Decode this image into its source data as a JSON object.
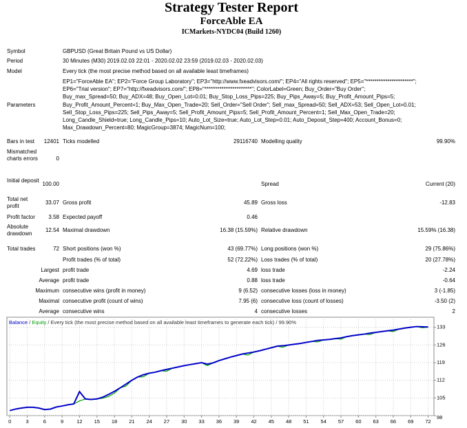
{
  "header": {
    "title": "Strategy Tester Report",
    "subtitle": "ForceAble EA",
    "server": "ICMarkets-NYDC04 (Build 1260)"
  },
  "info": [
    {
      "label": "Symbol",
      "value": "GBPUSD (Great Britain Pound vs US Dollar)"
    },
    {
      "label": "Period",
      "value": "30 Minutes (M30) 2019.02.03 22:01 - 2020.02.02 23:59 (2019.02.03 - 2020.02.03)"
    },
    {
      "label": "Model",
      "value": "Every tick (the most precise method based on all available least timeframes)"
    }
  ],
  "parameters": {
    "label": "Parameters",
    "lines": [
      "EP1=\"ForceAble EA\"; EP2=\"Force Group Laboratory\"; EP3=\"http://www.fxeadvisors.com/\"; EP4=\"All rights reserved\"; EP5=\"**********************\";",
      "EP6=\"Trial version\"; EP7=\"http://fxeadvisors.com/\"; EP8=\"**********************\"; ColorLabel=Green; Buy_Order=\"Buy Order\";",
      "Buy_max_Spread=50; Buy_ADX=48; Buy_Open_Lot=0.01; Buy_Stop_Loss_Pips=225; Buy_Pips_Away=5; Buy_Profit_Amount_Pips=5;",
      "Buy_Profit_Amount_Percent=1; Buy_Max_Open_Trade=20; Sell_Order=\"Sell Order\"; Sell_max_Spread=50; Sell_ADX=53; Sell_Open_Lot=0.01;",
      "Sell_Stop_Loss_Pips=225; Sell_Pips_Away=5; Sell_Profit_Amount_Pips=5; Sell_Profit_Amount_Percent=1; Sell_Max_Open_Trade=20;",
      "Long_Candle_Shield=true; Long_Candle_Pips=10; Auto_Lot_Size=true; Auto_Lot_Step=0.01; Auto_Deposit_Step=400; Account_Bonus=0;",
      "Max_Drawdown_Percent=80; MagicGroup=3874; MagicNum=100;"
    ]
  },
  "stats": [
    [
      "Bars in test",
      "12401",
      "Ticks modelled",
      "29116740",
      "Modelling quality",
      "99.90%"
    ],
    [
      "Mismatched charts errors",
      "0",
      null,
      null,
      null,
      null
    ],
    [
      "Initial deposit",
      "100.00",
      null,
      null,
      "Spread",
      "Current (20)"
    ],
    [
      "Total net profit",
      "33.07",
      "Gross profit",
      "45.89",
      "Gross loss",
      "-12.83"
    ],
    [
      "Profit factor",
      "3.58",
      "Expected payoff",
      "0.46",
      null,
      null
    ],
    [
      "Absolute drawdown",
      "12.54",
      "Maximal drawdown",
      "16.38 (15.59%)",
      "Relative drawdown",
      "15.59% (16.38)"
    ],
    [
      "Total trades",
      "72",
      "Short positions (won %)",
      "43 (69.77%)",
      "Long positions (won %)",
      "29 (75.86%)"
    ],
    [
      null,
      null,
      "Profit trades (% of total)",
      "52 (72.22%)",
      "Loss trades (% of total)",
      "20 (27.78%)"
    ],
    [
      null,
      "Largest",
      "profit trade",
      "4.69",
      "loss trade",
      "-2.24"
    ],
    [
      null,
      "Average",
      "profit trade",
      "0.88",
      "loss trade",
      "-0.64"
    ],
    [
      null,
      "Maximum",
      "consecutive wins (profit in money)",
      "9 (6.52)",
      "consecutive losses (loss in money)",
      "3 (-1.85)"
    ],
    [
      null,
      "Maximal",
      "consecutive profit (count of wins)",
      "7.95 (6)",
      "consecutive loss (count of losses)",
      "-3.50 (2)"
    ],
    [
      null,
      "Average",
      "consecutive wins",
      "4",
      "consecutive losses",
      "2"
    ]
  ],
  "chart_data": {
    "type": "line",
    "separator": "/",
    "note": "Every tick (the most precise method based on all available least timeframes to generate each tick)",
    "quality": "99.90%",
    "x": [
      0,
      1,
      2,
      3,
      4,
      5,
      6,
      7,
      8,
      9,
      10,
      11,
      12,
      13,
      14,
      15,
      16,
      17,
      18,
      19,
      20,
      21,
      22,
      23,
      24,
      25,
      26,
      27,
      28,
      29,
      30,
      31,
      32,
      33,
      34,
      35,
      36,
      37,
      38,
      39,
      40,
      41,
      42,
      43,
      44,
      45,
      46,
      47,
      48,
      49,
      50,
      51,
      52,
      53,
      54,
      55,
      56,
      57,
      58,
      59,
      60,
      61,
      62,
      63,
      64,
      65,
      66,
      67,
      68,
      69,
      70,
      71,
      72
    ],
    "series": [
      {
        "name": "Equity",
        "color": "#00a000",
        "values": [
          100.0,
          100.6,
          101.0,
          101.3,
          101.3,
          101.0,
          100.4,
          100.6,
          101.4,
          101.8,
          102.3,
          102.6,
          103.8,
          104.6,
          104.4,
          104.6,
          104.9,
          105.6,
          106.9,
          109.0,
          109.7,
          112.0,
          113.3,
          113.4,
          114.8,
          115.2,
          115.8,
          115.6,
          116.8,
          117.3,
          117.8,
          118.2,
          118.6,
          119.0,
          117.8,
          118.9,
          119.8,
          120.5,
          121.2,
          121.8,
          122.4,
          122.0,
          123.2,
          123.7,
          124.3,
          124.9,
          125.5,
          125.1,
          126.0,
          126.3,
          126.6,
          127.0,
          127.4,
          127.2,
          128.0,
          128.2,
          128.5,
          128.3,
          129.3,
          129.7,
          130.0,
          130.3,
          130.1,
          131.0,
          131.3,
          131.6,
          131.3,
          132.3,
          132.7,
          133.0,
          133.3,
          132.8,
          133.1
        ]
      },
      {
        "name": "Balance",
        "color": "#0000c8",
        "values": [
          100.0,
          100.6,
          101.0,
          101.3,
          101.3,
          101.0,
          100.4,
          100.6,
          101.4,
          101.8,
          102.3,
          102.6,
          107.5,
          104.6,
          104.4,
          104.6,
          105.3,
          106.4,
          107.6,
          109.0,
          110.5,
          112.0,
          113.3,
          114.2,
          114.8,
          115.2,
          115.8,
          116.3,
          116.8,
          117.3,
          117.8,
          118.2,
          118.6,
          119.0,
          118.4,
          118.9,
          119.8,
          120.5,
          121.2,
          121.8,
          122.4,
          122.8,
          123.2,
          123.7,
          124.3,
          124.9,
          125.5,
          125.7,
          126.0,
          126.3,
          126.6,
          127.0,
          127.4,
          127.8,
          128.0,
          128.2,
          128.5,
          128.8,
          129.3,
          129.7,
          130.0,
          130.3,
          130.7,
          131.0,
          131.3,
          131.6,
          131.9,
          132.3,
          132.7,
          133.0,
          133.3,
          133.2,
          133.1
        ]
      }
    ],
    "xlim": [
      -0.5,
      73
    ],
    "ylim": [
      98,
      137
    ],
    "xticks": [
      0,
      3,
      6,
      9,
      12,
      15,
      18,
      21,
      24,
      27,
      30,
      33,
      36,
      39,
      42,
      45,
      48,
      51,
      54,
      57,
      60,
      63,
      66,
      69,
      72
    ],
    "yticks": [
      98,
      105,
      112,
      119,
      126,
      133
    ],
    "grid": true
  }
}
